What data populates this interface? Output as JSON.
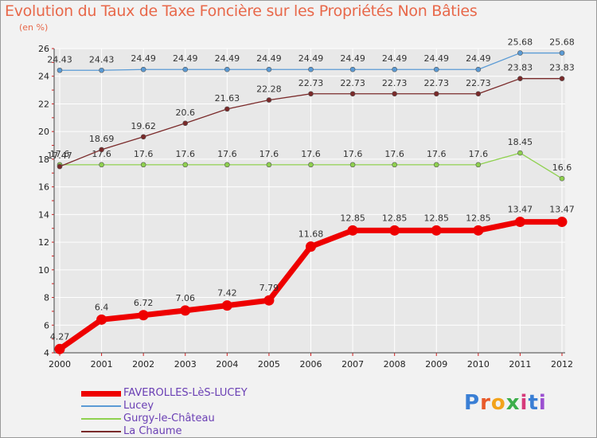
{
  "title": "Evolution du Taux de Taxe Foncière sur les Propriétés Non Bâties",
  "unit": "(en %)",
  "logo": "Proxiti",
  "colors": {
    "title": "#e8684a",
    "grid": "#ffffff",
    "axis_tick": "#d62020"
  },
  "chart_data": {
    "type": "line",
    "title": "Evolution du Taux de Taxe Foncière sur les Propriétés Non Bâties",
    "ylabel": "(en %)",
    "xlabel": "",
    "categories": [
      "2000",
      "2001",
      "2002",
      "2003",
      "2004",
      "2005",
      "2006",
      "2007",
      "2008",
      "2009",
      "2010",
      "2011",
      "2012"
    ],
    "ylim": [
      4,
      26
    ],
    "yticks": [
      4,
      6,
      8,
      10,
      12,
      14,
      16,
      18,
      20,
      22,
      24,
      26
    ],
    "series": [
      {
        "name": "FAVEROLLES-LèS-LUCEY",
        "color": "#ee0000",
        "values": [
          4.27,
          6.4,
          6.72,
          7.06,
          7.42,
          7.79,
          11.68,
          12.85,
          12.85,
          12.85,
          12.85,
          13.47,
          13.47
        ],
        "labels": [
          "4.27",
          "6.4",
          "6.72",
          "7.06",
          "7.42",
          "7.79",
          "11.68",
          "12.85",
          "12.85",
          "12.85",
          "12.85",
          "13.47",
          "13.47"
        ]
      },
      {
        "name": "Lucey",
        "color": "#5b9bd5",
        "values": [
          24.43,
          24.43,
          24.49,
          24.49,
          24.49,
          24.49,
          24.49,
          24.49,
          24.49,
          24.49,
          24.49,
          25.68,
          25.68
        ],
        "labels": [
          "24.43",
          "24.43",
          "24.49",
          "24.49",
          "24.49",
          "24.49",
          "24.49",
          "24.49",
          "24.49",
          "24.49",
          "24.49",
          "25.68",
          "25.68"
        ]
      },
      {
        "name": "Gurgy-le-Château",
        "color": "#8fd14f",
        "values": [
          17.6,
          17.6,
          17.6,
          17.6,
          17.6,
          17.6,
          17.6,
          17.6,
          17.6,
          17.6,
          17.6,
          18.45,
          16.6
        ],
        "labels": [
          "17.6",
          "17.6",
          "17.6",
          "17.6",
          "17.6",
          "17.6",
          "17.6",
          "17.6",
          "17.6",
          "17.6",
          "17.6",
          "18.45",
          "16.6"
        ]
      },
      {
        "name": "La Chaume",
        "color": "#7a2a2a",
        "values": [
          17.47,
          18.69,
          19.62,
          20.6,
          21.63,
          22.28,
          22.73,
          22.73,
          22.73,
          22.73,
          22.73,
          23.83,
          23.83
        ],
        "labels": [
          "17.47",
          "18.69",
          "19.62",
          "20.6",
          "21.63",
          "22.28",
          "22.73",
          "22.73",
          "22.73",
          "22.73",
          "22.73",
          "23.83",
          "23.83"
        ]
      }
    ]
  }
}
